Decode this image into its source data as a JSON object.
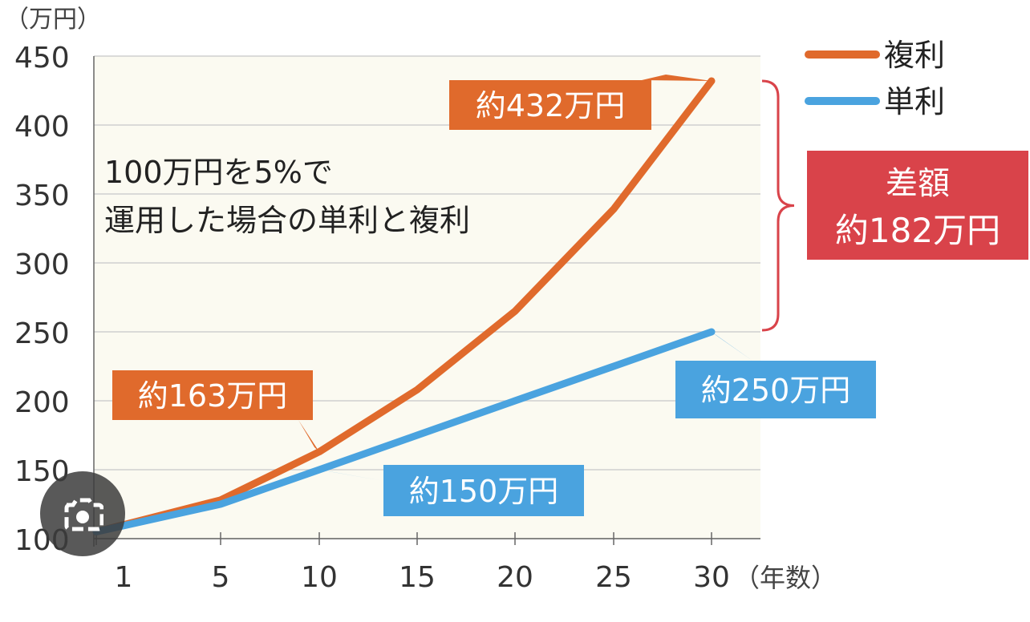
{
  "chart_data": {
    "type": "line",
    "title": "100万円を5%で\n運用した場合の単利と複利",
    "y_unit_label": "（万円）",
    "x_unit_label": "（年数）",
    "x_ticks": [
      "1",
      "5",
      "10",
      "15",
      "20",
      "25",
      "30"
    ],
    "y_ticks": [
      "100",
      "150",
      "200",
      "250",
      "300",
      "350",
      "400",
      "450"
    ],
    "ylim": [
      100,
      450
    ],
    "grid": "horizontal",
    "legend_position": "top-right",
    "series": [
      {
        "name": "複利",
        "color": "#e06a2c",
        "x": [
          1,
          5,
          10,
          15,
          20,
          25,
          30
        ],
        "values": [
          105,
          128,
          163,
          208,
          265,
          339,
          432
        ]
      },
      {
        "name": "単利",
        "color": "#4aa3df",
        "x": [
          1,
          5,
          10,
          15,
          20,
          25,
          30
        ],
        "values": [
          105,
          125,
          150,
          175,
          200,
          225,
          250
        ]
      }
    ],
    "annotations": [
      {
        "text": "約432万円",
        "series": 0,
        "x": 30,
        "y": 432,
        "color": "#e06a2c"
      },
      {
        "text": "約163万円",
        "series": 0,
        "x": 10,
        "y": 163,
        "color": "#e06a2c"
      },
      {
        "text": "約150万円",
        "series": 1,
        "x": 10,
        "y": 150,
        "color": "#4aa3df"
      },
      {
        "text": "約250万円",
        "series": 1,
        "x": 30,
        "y": 250,
        "color": "#4aa3df"
      }
    ],
    "difference_box": {
      "line1": "差額",
      "line2": "約182万円",
      "color": "#d9434a"
    }
  },
  "colors": {
    "plot_background": "#fbfaf1",
    "grid": "#cfcfcf"
  },
  "overlay": {
    "icon": "lens-camera-icon"
  }
}
